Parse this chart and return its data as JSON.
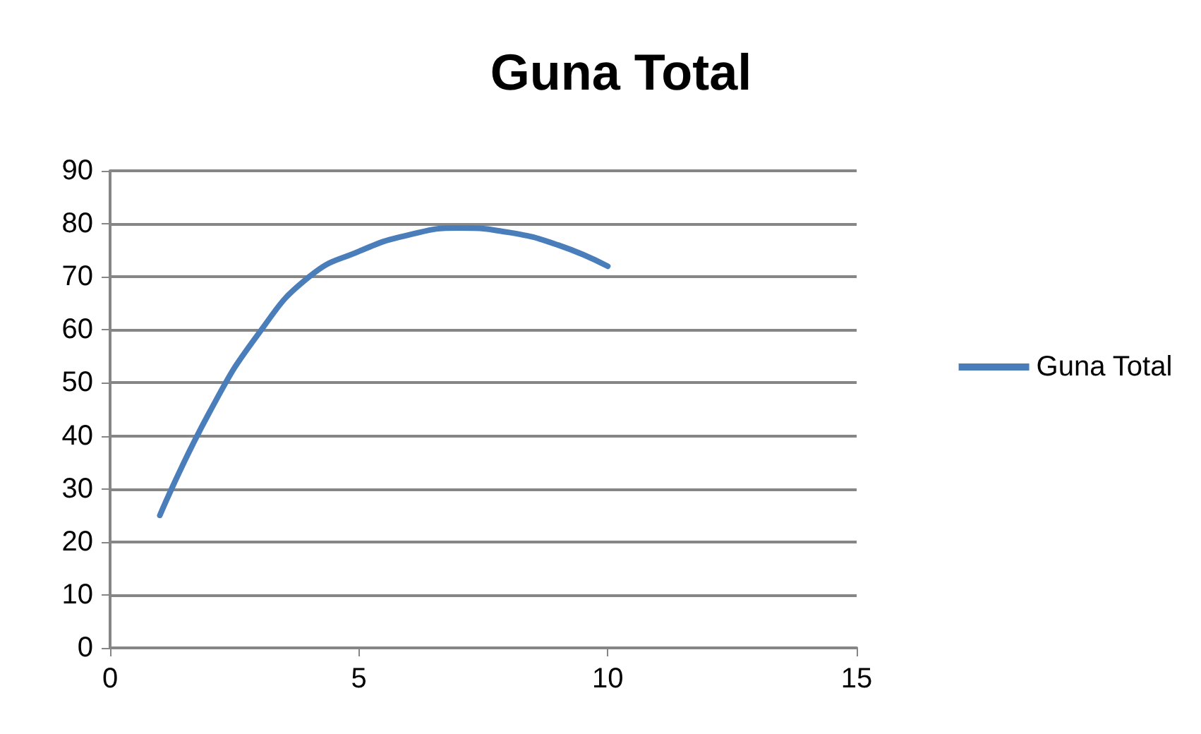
{
  "chart_data": {
    "type": "line",
    "title": "Guna Total",
    "x": [
      1,
      2,
      3,
      4,
      5,
      6,
      7,
      8,
      9,
      10
    ],
    "series": [
      {
        "name": "Guna Total",
        "color": "#4a7ebb",
        "values": [
          25,
          44.5,
          59.5,
          70,
          74.8,
          77.9,
          79.2,
          78.4,
          76,
          72
        ]
      }
    ],
    "xlim": [
      0,
      15
    ],
    "xticks": [
      0,
      5,
      10,
      15
    ],
    "ylim": [
      0,
      90
    ],
    "yticks": [
      0,
      10,
      20,
      30,
      40,
      50,
      60,
      70,
      80,
      90
    ],
    "grid": "y",
    "legend": "right",
    "marker": "none",
    "line_style": "solid"
  }
}
